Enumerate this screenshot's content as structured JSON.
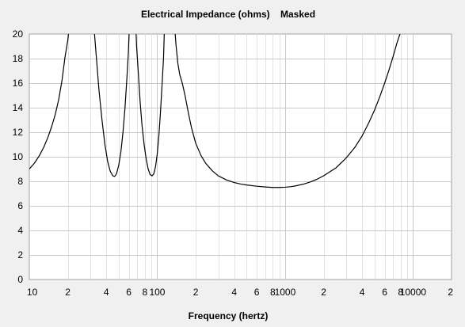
{
  "chart_data": {
    "type": "line",
    "title": "Electrical Impedance (ohms)    Masked",
    "xlabel": "Frequency (hertz)",
    "ylabel": "",
    "x_scale": "log",
    "xlim": [
      10,
      20000
    ],
    "ylim": [
      0,
      20
    ],
    "grid": true,
    "x_tick_labels": [
      {
        "value": 10,
        "label": "10"
      },
      {
        "value": 20,
        "label": "2"
      },
      {
        "value": 40,
        "label": "4"
      },
      {
        "value": 60,
        "label": "6"
      },
      {
        "value": 80,
        "label": "8"
      },
      {
        "value": 100,
        "label": "100"
      },
      {
        "value": 200,
        "label": "2"
      },
      {
        "value": 400,
        "label": "4"
      },
      {
        "value": 600,
        "label": "6"
      },
      {
        "value": 800,
        "label": "8"
      },
      {
        "value": 1000,
        "label": "1000"
      },
      {
        "value": 2000,
        "label": "2"
      },
      {
        "value": 4000,
        "label": "4"
      },
      {
        "value": 6000,
        "label": "6"
      },
      {
        "value": 8000,
        "label": "8"
      },
      {
        "value": 10000,
        "label": "10000"
      },
      {
        "value": 20000,
        "label": "2"
      }
    ],
    "y_ticks": [
      0,
      2,
      4,
      6,
      8,
      10,
      12,
      14,
      16,
      18,
      20
    ],
    "series": [
      {
        "color": "#000000",
        "points": [
          [
            10,
            9.0
          ],
          [
            11,
            9.5
          ],
          [
            12,
            10.1
          ],
          [
            13,
            10.8
          ],
          [
            14,
            11.6
          ],
          [
            15,
            12.5
          ],
          [
            16,
            13.5
          ],
          [
            17,
            14.7
          ],
          [
            18,
            16.2
          ],
          [
            19,
            18.1
          ],
          [
            20,
            19.5
          ],
          [
            20.5,
            20.6
          ],
          [
            32,
            20.6
          ],
          [
            33.5,
            18.0
          ],
          [
            35,
            15.5
          ],
          [
            37,
            13.0
          ],
          [
            39,
            11.0
          ],
          [
            41,
            9.6
          ],
          [
            43,
            8.8
          ],
          [
            45,
            8.45
          ],
          [
            46.5,
            8.4
          ],
          [
            48,
            8.6
          ],
          [
            50,
            9.3
          ],
          [
            52,
            10.4
          ],
          [
            54,
            12.0
          ],
          [
            56,
            14.0
          ],
          [
            58,
            16.5
          ],
          [
            59.5,
            18.5
          ],
          [
            60.5,
            20.6
          ],
          [
            68,
            20.6
          ],
          [
            69,
            19.0
          ],
          [
            71,
            17.0
          ],
          [
            73.5,
            14.5
          ],
          [
            76,
            12.6
          ],
          [
            79,
            11.0
          ],
          [
            82,
            9.8
          ],
          [
            85,
            9.0
          ],
          [
            88,
            8.55
          ],
          [
            91,
            8.45
          ],
          [
            94,
            8.6
          ],
          [
            97,
            9.2
          ],
          [
            100,
            10.2
          ],
          [
            103,
            11.7
          ],
          [
            106,
            13.6
          ],
          [
            109,
            15.8
          ],
          [
            112,
            18.0
          ],
          [
            114,
            20.6
          ],
          [
            137,
            20.6
          ],
          [
            140,
            19.2
          ],
          [
            145,
            17.6
          ],
          [
            150,
            16.7
          ],
          [
            157,
            16.0
          ],
          [
            165,
            15.0
          ],
          [
            175,
            13.6
          ],
          [
            185,
            12.4
          ],
          [
            200,
            11.1
          ],
          [
            220,
            10.1
          ],
          [
            240,
            9.45
          ],
          [
            270,
            8.85
          ],
          [
            300,
            8.45
          ],
          [
            350,
            8.1
          ],
          [
            400,
            7.9
          ],
          [
            450,
            7.78
          ],
          [
            500,
            7.7
          ],
          [
            600,
            7.6
          ],
          [
            700,
            7.54
          ],
          [
            800,
            7.5
          ],
          [
            900,
            7.5
          ],
          [
            1000,
            7.52
          ],
          [
            1100,
            7.56
          ],
          [
            1200,
            7.62
          ],
          [
            1400,
            7.78
          ],
          [
            1600,
            7.97
          ],
          [
            1800,
            8.2
          ],
          [
            2000,
            8.45
          ],
          [
            2500,
            9.1
          ],
          [
            3000,
            9.9
          ],
          [
            3500,
            10.75
          ],
          [
            4000,
            11.7
          ],
          [
            4500,
            12.75
          ],
          [
            5000,
            13.8
          ],
          [
            5500,
            14.9
          ],
          [
            6000,
            16.0
          ],
          [
            6500,
            17.1
          ],
          [
            7000,
            18.2
          ],
          [
            7500,
            19.3
          ],
          [
            7900,
            20.0
          ],
          [
            8100,
            20.6
          ]
        ]
      }
    ]
  }
}
